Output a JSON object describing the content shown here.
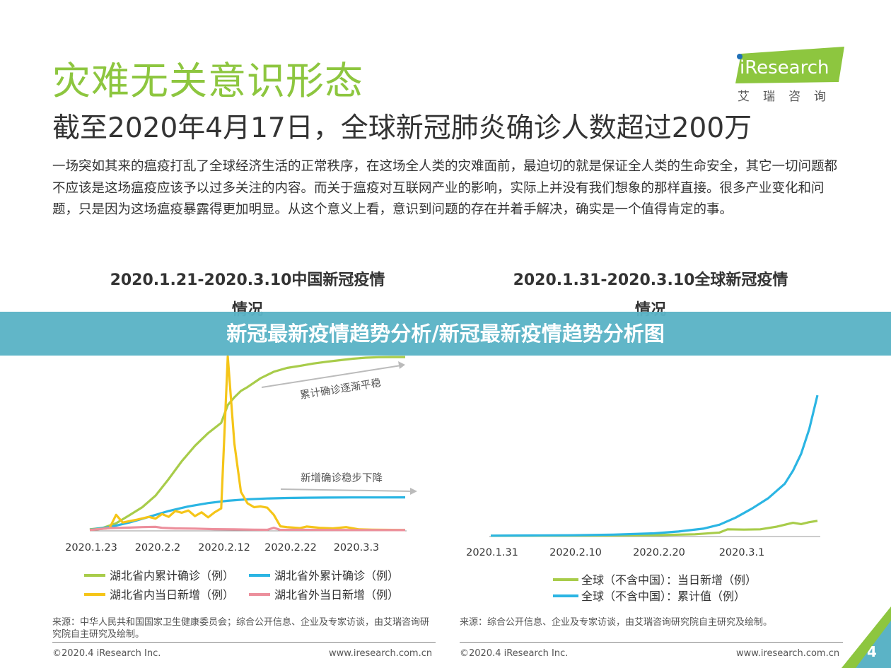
{
  "header": {
    "title": "灾难无关意识形态",
    "subtitle": "截至2020年4月17日，全球新冠肺炎确诊人数超过200万",
    "body": "一场突如其来的瘟疫打乱了全球经济生活的正常秩序，在这场全人类的灾难面前，最迫切的就是保证全人类的生命安全，其它一切问题都不应该是这场瘟疫应该予以过多关注的内容。而关于瘟疫对互联网产业的影响，实际上并没有我们想象的那样直接。很多产业变化和问题，只是因为这场瘟疫暴露得更加明显。从这个意义上看，意识到问题的存在并着手解决，确实是一个值得肯定的事。"
  },
  "logo": {
    "brand": "iResearch",
    "cn": "艾瑞咨询",
    "color": "#8dc63f"
  },
  "banner": {
    "text": "新冠最新疫情趋势分析/新冠最新疫情趋势分析图"
  },
  "colors": {
    "green": "#a8cc4a",
    "blue": "#2bb5e3",
    "yellow": "#f5c518",
    "pink": "#ec8f9c",
    "accent": "#8dc63f"
  },
  "chart_data": [
    {
      "type": "line",
      "title_line1": "2020.1.21-2020.3.10中国新冠疫情",
      "title_line2": "情况",
      "x_ticks": [
        "2020.1.23",
        "2020.2.2",
        "2020.2.12",
        "2020.2.22",
        "2020.3.3"
      ],
      "x_range_days": [
        0,
        48
      ],
      "y_range": [
        0,
        70000
      ],
      "grid": false,
      "legend_position": "bottom",
      "annotations": [
        "累计确诊逐渐平稳",
        "新增确诊稳步下降"
      ],
      "series": [
        {
          "name": "湖北省内累计确诊（例）",
          "color": "green",
          "points": [
            [
              0,
              300
            ],
            [
              2,
              900
            ],
            [
              4,
              2700
            ],
            [
              6,
              5800
            ],
            [
              8,
              9000
            ],
            [
              10,
              13500
            ],
            [
              12,
              20000
            ],
            [
              14,
              27000
            ],
            [
              16,
              33000
            ],
            [
              18,
              38000
            ],
            [
              20,
              42000
            ],
            [
              21,
              49000
            ],
            [
              22,
              52000
            ],
            [
              23,
              54500
            ],
            [
              24,
              56000
            ],
            [
              26,
              59500
            ],
            [
              28,
              62000
            ],
            [
              30,
              63500
            ],
            [
              32,
              64300
            ],
            [
              34,
              65200
            ],
            [
              36,
              65900
            ],
            [
              38,
              66500
            ],
            [
              40,
              67100
            ],
            [
              42,
              67500
            ],
            [
              44,
              67700
            ],
            [
              46,
              67750
            ],
            [
              48,
              67760
            ]
          ]
        },
        {
          "name": "湖北省外累计确诊（例）",
          "color": "blue",
          "points": [
            [
              0,
              200
            ],
            [
              3,
              1200
            ],
            [
              6,
              3000
            ],
            [
              9,
              5200
            ],
            [
              12,
              7500
            ],
            [
              15,
              9300
            ],
            [
              18,
              10600
            ],
            [
              21,
              11500
            ],
            [
              24,
              12100
            ],
            [
              27,
              12400
            ],
            [
              30,
              12600
            ],
            [
              33,
              12700
            ],
            [
              36,
              12750
            ],
            [
              40,
              12800
            ],
            [
              44,
              12820
            ],
            [
              48,
              12830
            ]
          ]
        },
        {
          "name": "湖北省内当日新增（例）",
          "color": "yellow",
          "points": [
            [
              0,
              100
            ],
            [
              3,
              800
            ],
            [
              4,
              6000
            ],
            [
              5,
              3000
            ],
            [
              7,
              4000
            ],
            [
              9,
              5200
            ],
            [
              10,
              4500
            ],
            [
              11,
              6300
            ],
            [
              12,
              5200
            ],
            [
              13,
              7500
            ],
            [
              14,
              6800
            ],
            [
              15,
              7700
            ],
            [
              16,
              5500
            ],
            [
              17,
              7000
            ],
            [
              18,
              5000
            ],
            [
              19,
              7000
            ],
            [
              20,
              8500
            ],
            [
              21,
              68000
            ],
            [
              22,
              34000
            ],
            [
              23,
              15000
            ],
            [
              24,
              10500
            ],
            [
              25,
              9000
            ],
            [
              26,
              9300
            ],
            [
              27,
              8800
            ],
            [
              28,
              6000
            ],
            [
              29,
              1500
            ],
            [
              30,
              1200
            ],
            [
              32,
              800
            ],
            [
              33,
              1400
            ],
            [
              35,
              900
            ],
            [
              37,
              700
            ],
            [
              39,
              1200
            ],
            [
              41,
              300
            ],
            [
              43,
              200
            ],
            [
              46,
              100
            ],
            [
              48,
              50
            ]
          ]
        },
        {
          "name": "湖北省外当日新增（例）",
          "color": "pink",
          "points": [
            [
              0,
              50
            ],
            [
              3,
              800
            ],
            [
              6,
              1000
            ],
            [
              8,
              1200
            ],
            [
              10,
              1300
            ],
            [
              11,
              900
            ],
            [
              13,
              700
            ],
            [
              16,
              600
            ],
            [
              19,
              400
            ],
            [
              22,
              300
            ],
            [
              25,
              200
            ],
            [
              27,
              150
            ],
            [
              28,
              900
            ],
            [
              29,
              100
            ],
            [
              31,
              200
            ],
            [
              35,
              100
            ],
            [
              40,
              50
            ],
            [
              48,
              30
            ]
          ]
        }
      ]
    },
    {
      "type": "line",
      "title_line1": "2020.1.31-2020.3.10全球新冠疫情",
      "title_line2": "情况",
      "x_ticks": [
        "2020.1.31",
        "2020.2.10",
        "2020.2.20",
        "2020.3.1"
      ],
      "x_range_days": [
        0,
        40
      ],
      "y_range": [
        0,
        120000
      ],
      "grid": false,
      "legend_position": "bottom",
      "series": [
        {
          "name": "全球（不含中国）：当日新增（例）",
          "color": "green",
          "points": [
            [
              0,
              0
            ],
            [
              10,
              100
            ],
            [
              20,
              500
            ],
            [
              25,
              1200
            ],
            [
              28,
              2500
            ],
            [
              29,
              5000
            ],
            [
              31,
              4800
            ],
            [
              33,
              5000
            ],
            [
              35,
              7000
            ],
            [
              37,
              10000
            ],
            [
              38,
              9000
            ],
            [
              39,
              10500
            ],
            [
              40,
              11500
            ]
          ]
        },
        {
          "name": "全球（不含中国）：累计值（例）",
          "color": "blue",
          "points": [
            [
              0,
              130
            ],
            [
              5,
              250
            ],
            [
              10,
              450
            ],
            [
              15,
              900
            ],
            [
              20,
              1900
            ],
            [
              23,
              3300
            ],
            [
              26,
              5500
            ],
            [
              28,
              8500
            ],
            [
              30,
              14000
            ],
            [
              32,
              21000
            ],
            [
              34,
              29000
            ],
            [
              36,
              40000
            ],
            [
              37,
              50000
            ],
            [
              38,
              63000
            ],
            [
              39,
              82000
            ],
            [
              40,
              108000
            ]
          ]
        }
      ]
    }
  ],
  "sources": {
    "left": "来源：中华人民共和国国家卫生健康委员会；综合公开信息、企业及专家访谈，由艾瑞咨询研究院自主研究及绘制。",
    "right": "来源：综合公开信息、企业及专家访谈，由艾瑞咨询研究院自主研究及绘制。"
  },
  "footer": {
    "copyright": "©2020.4 iResearch Inc.",
    "website": "www.iresearch.com.cn",
    "page": "4"
  }
}
